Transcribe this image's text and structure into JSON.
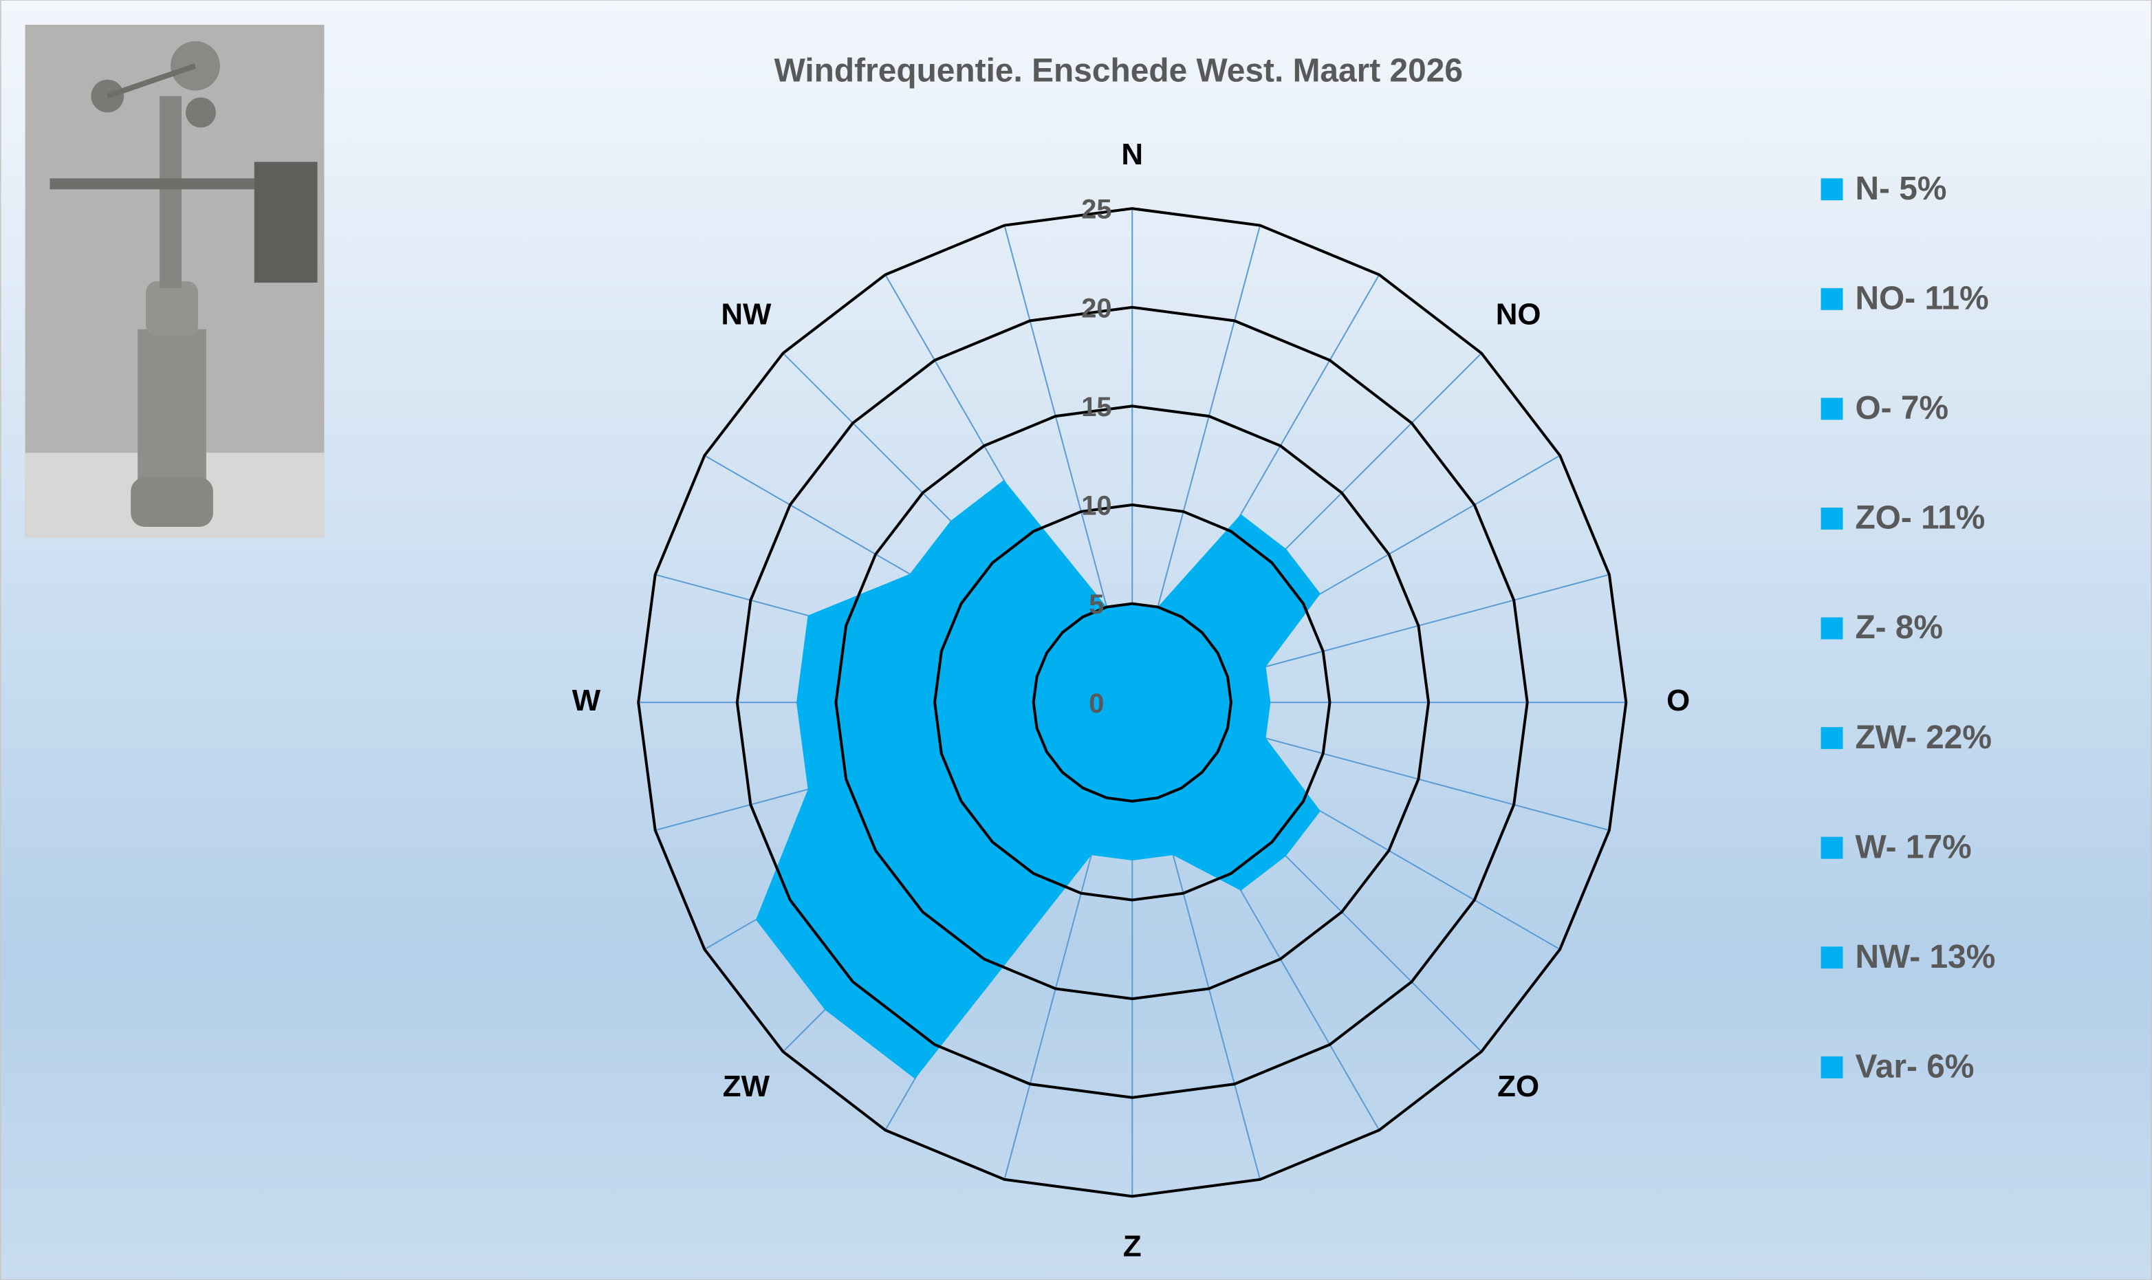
{
  "chart_data": {
    "type": "radar",
    "title": "Windfrequentie. Enschede West. Maart 2026",
    "categories": [
      "N",
      null,
      null,
      "NO",
      null,
      null,
      "O",
      null,
      null,
      "ZO",
      null,
      null,
      "Z",
      null,
      null,
      "ZW",
      null,
      null,
      "W",
      null,
      null,
      "NW",
      null,
      null
    ],
    "values": [
      5,
      5,
      11,
      11,
      11,
      7,
      7,
      7,
      11,
      11,
      11,
      8,
      8,
      8,
      22,
      22,
      22,
      17,
      17,
      17,
      13,
      13,
      13,
      5
    ],
    "color": "#00b0f0",
    "ylim": [
      0,
      25
    ],
    "yticks": [
      0,
      5,
      10,
      15,
      20,
      25
    ],
    "legend": [
      "N- 5%",
      "NO- 11%",
      "O- 7%",
      "ZO- 11%",
      "Z- 8%",
      "ZW- 22%",
      "W- 17%",
      "NW- 13%",
      "Var- 6%"
    ]
  }
}
